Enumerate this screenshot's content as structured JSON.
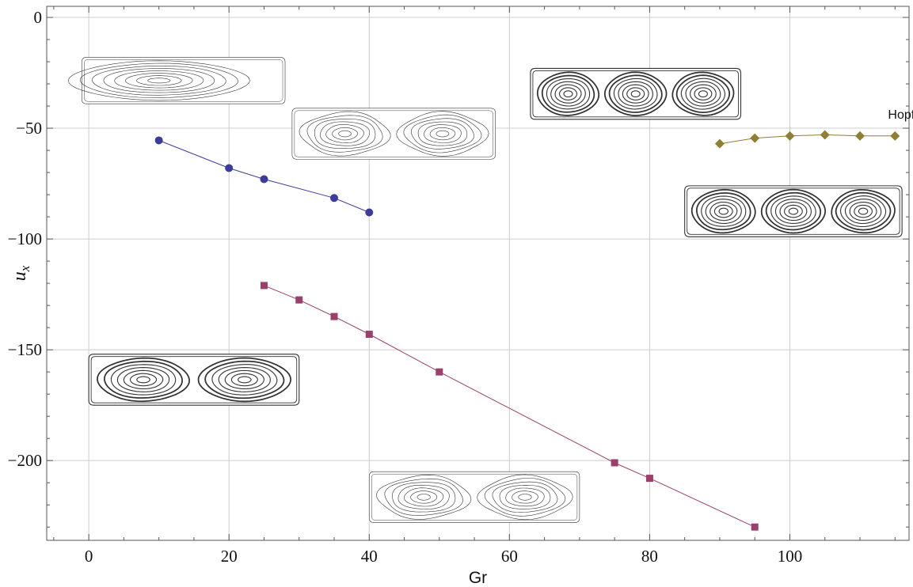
{
  "chart_data": {
    "type": "line",
    "xlabel": "Gr",
    "ylabel_main": "u",
    "ylabel_sub": "x",
    "xlim": [
      -6,
      117
    ],
    "ylim": [
      -236,
      5
    ],
    "xticks": [
      0,
      20,
      40,
      60,
      80,
      100
    ],
    "yticks": [
      0,
      -50,
      -100,
      -150,
      -200
    ],
    "xtick_labels": [
      "0",
      "20",
      "40",
      "60",
      "80",
      "100"
    ],
    "ytick_labels": [
      "0",
      "−50",
      "−100",
      "−150",
      "−200"
    ],
    "grid": true,
    "series": [
      {
        "marker": "circle",
        "color": "#3d3d99",
        "x": [
          10,
          20,
          25,
          35,
          40
        ],
        "y": [
          -55.5,
          -68,
          -73,
          -81.5,
          -88
        ]
      },
      {
        "marker": "square",
        "color": "#99406b",
        "x": [
          25,
          30,
          35,
          40,
          50,
          75,
          80,
          95
        ],
        "y": [
          -121,
          -127.5,
          -135,
          -143,
          -160,
          -201,
          -208,
          -230
        ]
      },
      {
        "marker": "diamond",
        "color": "#8f7f35",
        "x": [
          90,
          95,
          100,
          105,
          110,
          115
        ],
        "y": [
          -57,
          -54.5,
          -53.5,
          -53,
          -53.5,
          -53.5
        ]
      }
    ],
    "annotations": [
      {
        "text": "Hopf",
        "x": 115,
        "y": -44
      }
    ],
    "streamline_insets": [
      {
        "kind": "single-cell",
        "x": [
          -1,
          28
        ],
        "y": [
          -18,
          -39
        ]
      },
      {
        "kind": "two-cells",
        "x": [
          29,
          58
        ],
        "y": [
          -41,
          -64
        ]
      },
      {
        "kind": "three-cells",
        "x": [
          63,
          93
        ],
        "y": [
          -23,
          -46
        ]
      },
      {
        "kind": "three-cells-bold",
        "x": [
          85,
          116
        ],
        "y": [
          -76,
          -99
        ]
      },
      {
        "kind": "two-cells-bold",
        "x": [
          0,
          30
        ],
        "y": [
          -152,
          -175
        ]
      },
      {
        "kind": "two-cells-wavy",
        "x": [
          40,
          70
        ],
        "y": [
          -205,
          -228
        ]
      }
    ]
  }
}
